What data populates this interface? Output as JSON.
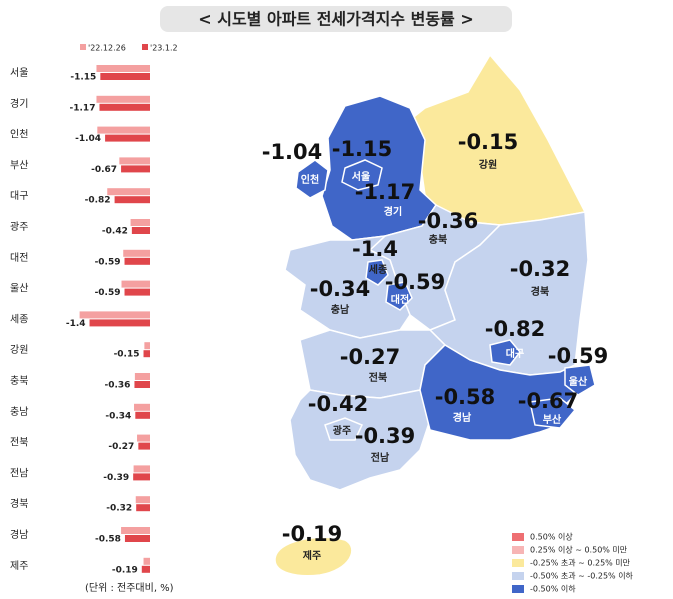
{
  "title": "< 시도별 아파트 전세가격지수 변동률 >",
  "note": "(단위 : 전주대비, %)",
  "chart_data": [
    {
      "type": "bar",
      "orientation": "horizontal",
      "categories": [
        "서울",
        "경기",
        "인천",
        "부산",
        "대구",
        "광주",
        "대전",
        "울산",
        "세종",
        "강원",
        "충북",
        "충남",
        "전북",
        "전남",
        "경북",
        "경남",
        "제주"
      ],
      "series": [
        {
          "name": "'22.12.26",
          "color": "#f4a0a0",
          "values": [
            -1.24,
            -1.24,
            -1.22,
            -0.71,
            -0.99,
            -0.45,
            -0.62,
            -0.66,
            -1.63,
            -0.13,
            -0.35,
            -0.37,
            -0.3,
            -0.38,
            -0.33,
            -0.67,
            -0.15
          ]
        },
        {
          "name": "'23.1.2",
          "color": "#e0464b",
          "values": [
            -1.15,
            -1.17,
            -1.04,
            -0.67,
            -0.82,
            -0.42,
            -0.59,
            -0.59,
            -1.4,
            -0.15,
            -0.36,
            -0.34,
            -0.27,
            -0.39,
            -0.32,
            -0.58,
            -0.19
          ]
        }
      ],
      "xlim": [
        -2.2,
        0
      ]
    },
    {
      "type": "choropleth",
      "region_colors": [
        "#4066c8",
        "#4066c8",
        "#4066c8",
        "#4066c8",
        "#4066c8",
        "#c5d3ee",
        "#4066c8",
        "#4066c8",
        "#4066c8",
        "#fbe99c",
        "#c5d3ee",
        "#c5d3ee",
        "#c5d3ee",
        "#c5d3ee",
        "#c5d3ee",
        "#4066c8",
        "#fbe99c"
      ],
      "legend": [
        {
          "label": "0.50% 이상",
          "color": "#ee6f72"
        },
        {
          "label": "0.25% 이상 ~ 0.50% 미만",
          "color": "#f7b5b5"
        },
        {
          "label": "-0.25% 초과 ~ 0.25% 미만",
          "color": "#fbe99c"
        },
        {
          "label": "-0.50% 초과 ~ -0.25% 이하",
          "color": "#c5d3ee"
        },
        {
          "label": "-0.50% 이하",
          "color": "#4066c8"
        }
      ]
    }
  ]
}
